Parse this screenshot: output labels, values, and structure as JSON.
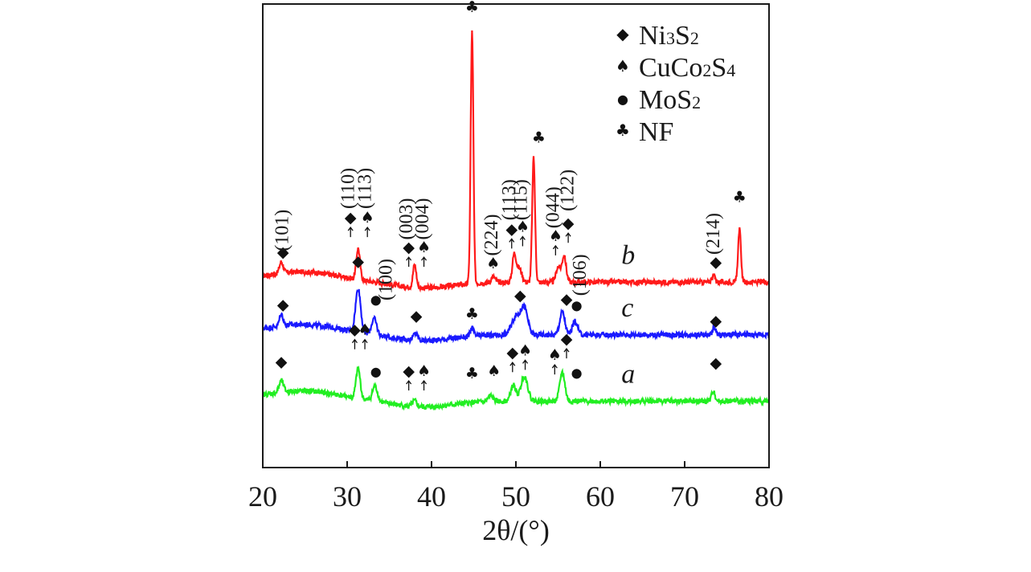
{
  "chart_data": {
    "type": "line",
    "title": "",
    "xlabel": "2θ/(°)",
    "ylabel": "",
    "xlim": [
      20,
      80
    ],
    "x_ticks": [
      "20",
      "30",
      "40",
      "50",
      "60",
      "70",
      "80"
    ],
    "y_ticks": [],
    "grid": false,
    "legend_position": "top-right",
    "legend": [
      {
        "marker": "diamond",
        "glyph": "◆",
        "label": "Ni3S2",
        "parts": [
          [
            "Ni",
            "normal"
          ],
          [
            "3",
            "sub"
          ],
          [
            "S",
            "normal"
          ],
          [
            "2",
            "sub"
          ]
        ]
      },
      {
        "marker": "spade",
        "glyph": "♠",
        "label": "CuCo2S4",
        "parts": [
          [
            "CuCo",
            "normal"
          ],
          [
            "2",
            "sub"
          ],
          [
            "S",
            "normal"
          ],
          [
            "4",
            "sub"
          ]
        ]
      },
      {
        "marker": "circle",
        "glyph": "●",
        "label": "MoS2",
        "parts": [
          [
            "MoS",
            "normal"
          ],
          [
            "2",
            "sub"
          ]
        ]
      },
      {
        "marker": "club",
        "glyph": "♣",
        "label": "NF",
        "parts": [
          [
            "NF",
            "normal"
          ]
        ]
      }
    ],
    "series": [
      {
        "name": "b",
        "color": "#ff1a1a",
        "baseline": 6.2,
        "label_x": 62.5,
        "peaks": [
          [
            22.2,
            1.0,
            0.22
          ],
          [
            31.3,
            2.7,
            0.22
          ],
          [
            38.0,
            2.0,
            0.2
          ],
          [
            44.8,
            22.0,
            0.16
          ],
          [
            47.3,
            0.5,
            0.25
          ],
          [
            49.8,
            2.4,
            0.22
          ],
          [
            50.4,
            1.2,
            0.3
          ],
          [
            52.1,
            10.8,
            0.17
          ],
          [
            55.0,
            1.3,
            0.25
          ],
          [
            55.7,
            2.3,
            0.25
          ],
          [
            73.4,
            0.6,
            0.2
          ],
          [
            76.5,
            4.6,
            0.17
          ]
        ],
        "markers": [
          {
            "x": 22.4,
            "glyph": "◆",
            "y": 8.4
          },
          {
            "x": 30.4,
            "glyph": "◆",
            "y": 11.4,
            "arrow": true
          },
          {
            "x": 32.4,
            "glyph": "♠",
            "y": 11.4,
            "arrow": true
          },
          {
            "x": 37.3,
            "glyph": "◆",
            "y": 8.8,
            "arrow": true
          },
          {
            "x": 39.1,
            "glyph": "♠",
            "y": 8.8,
            "arrow": true
          },
          {
            "x": 44.8,
            "glyph": "♣",
            "y": 29.8
          },
          {
            "x": 47.3,
            "glyph": "♠",
            "y": 7.4
          },
          {
            "x": 49.5,
            "glyph": "◆",
            "y": 10.4,
            "arrow": true
          },
          {
            "x": 50.8,
            "glyph": "♠",
            "y": 10.6,
            "arrow": true
          },
          {
            "x": 52.7,
            "glyph": "♣",
            "y": 18.4
          },
          {
            "x": 54.7,
            "glyph": "♠",
            "y": 9.8,
            "arrow": true
          },
          {
            "x": 56.2,
            "glyph": "◆",
            "y": 10.9,
            "arrow": true
          },
          {
            "x": 73.7,
            "glyph": "◆",
            "y": 7.5
          },
          {
            "x": 76.5,
            "glyph": "♣",
            "y": 13.2
          }
        ]
      },
      {
        "name": "c",
        "color": "#1a1aff",
        "baseline": 1.6,
        "label_x": 62.5,
        "peaks": [
          [
            22.2,
            1.0,
            0.22
          ],
          [
            31.3,
            3.8,
            0.3
          ],
          [
            33.2,
            1.4,
            0.3
          ],
          [
            38.1,
            0.6,
            0.25
          ],
          [
            44.8,
            0.7,
            0.2
          ],
          [
            50.0,
            1.6,
            0.5
          ],
          [
            51.0,
            2.3,
            0.4
          ],
          [
            55.5,
            2.0,
            0.3
          ],
          [
            57.0,
            1.2,
            0.3
          ],
          [
            73.5,
            0.6,
            0.2
          ]
        ],
        "markers": [
          {
            "x": 22.4,
            "glyph": "◆",
            "y": 3.8
          },
          {
            "x": 31.3,
            "glyph": "◆",
            "y": 7.6
          },
          {
            "x": 33.4,
            "glyph": "●",
            "y": 4.3
          },
          {
            "x": 38.2,
            "glyph": "◆",
            "y": 2.8
          },
          {
            "x": 44.8,
            "glyph": "♣",
            "y": 3.0
          },
          {
            "x": 50.5,
            "glyph": "◆",
            "y": 4.6
          },
          {
            "x": 56.0,
            "glyph": "◆",
            "y": 4.3
          },
          {
            "x": 57.2,
            "glyph": "●",
            "y": 3.8
          },
          {
            "x": 73.7,
            "glyph": "◆",
            "y": 2.4
          }
        ]
      },
      {
        "name": "a",
        "color": "#22ee22",
        "baseline": -4.2,
        "label_x": 62.5,
        "peaks": [
          [
            22.2,
            1.0,
            0.25
          ],
          [
            31.3,
            2.6,
            0.25
          ],
          [
            33.3,
            1.3,
            0.3
          ],
          [
            38.0,
            0.5,
            0.25
          ],
          [
            47.0,
            0.5,
            0.3
          ],
          [
            49.7,
            1.4,
            0.3
          ],
          [
            51.0,
            2.2,
            0.4
          ],
          [
            55.5,
            2.5,
            0.3
          ],
          [
            73.4,
            0.9,
            0.2
          ]
        ],
        "markers": [
          {
            "x": 22.2,
            "glyph": "◆",
            "y": -1.2
          },
          {
            "x": 30.9,
            "glyph": "◆",
            "y": 1.6,
            "arrow": true
          },
          {
            "x": 32.1,
            "glyph": "♠",
            "y": 1.6,
            "arrow": true
          },
          {
            "x": 33.4,
            "glyph": "●",
            "y": -2.0
          },
          {
            "x": 37.3,
            "glyph": "◆",
            "y": -2.0,
            "arrow": true
          },
          {
            "x": 39.1,
            "glyph": "♠",
            "y": -2.0,
            "arrow": true
          },
          {
            "x": 44.8,
            "glyph": "♣",
            "y": -2.2
          },
          {
            "x": 47.4,
            "glyph": "♠",
            "y": -2.0
          },
          {
            "x": 49.6,
            "glyph": "◆",
            "y": -0.4,
            "arrow": true
          },
          {
            "x": 51.1,
            "glyph": "♠",
            "y": -0.2,
            "arrow": true
          },
          {
            "x": 54.6,
            "glyph": "♠",
            "y": -0.6,
            "arrow": true
          },
          {
            "x": 56.0,
            "glyph": "◆",
            "y": 0.8,
            "arrow": true
          },
          {
            "x": 57.2,
            "glyph": "●",
            "y": -2.1
          },
          {
            "x": 73.7,
            "glyph": "◆",
            "y": -1.3
          }
        ]
      }
    ],
    "annotations": [
      {
        "text": "(101)",
        "x": 23.0,
        "y": 8.9
      },
      {
        "text": "(110)",
        "x": 30.8,
        "y": 12.6
      },
      {
        "text": "(113)",
        "x": 32.8,
        "y": 12.6
      },
      {
        "text": "(003)",
        "x": 37.7,
        "y": 9.9
      },
      {
        "text": "(004)",
        "x": 39.6,
        "y": 9.9
      },
      {
        "text": "(224)",
        "x": 47.8,
        "y": 8.5
      },
      {
        "text": "(113)",
        "x": 49.9,
        "y": 11.6
      },
      {
        "text": "(115)",
        "x": 51.3,
        "y": 11.6
      },
      {
        "text": "(044)",
        "x": 55.1,
        "y": 10.9
      },
      {
        "text": "(122)",
        "x": 56.8,
        "y": 12.4
      },
      {
        "text": "(214)",
        "x": 74.1,
        "y": 8.6
      },
      {
        "text": "(100)",
        "x": 35.3,
        "y": 4.6
      },
      {
        "text": "(106)",
        "x": 58.3,
        "y": 5.0
      }
    ]
  }
}
